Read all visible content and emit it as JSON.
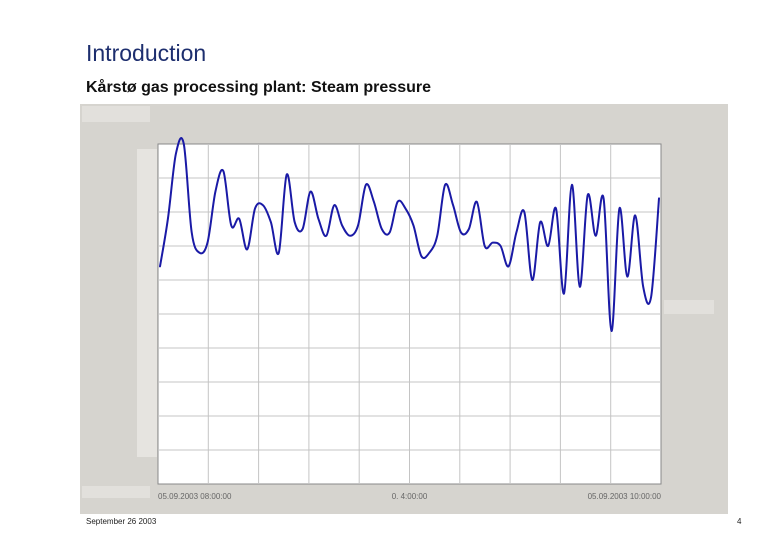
{
  "slide": {
    "title": "Introduction",
    "subtitle": "Kårstø gas processing plant: Steam pressure",
    "footer_date": "September 26 2003",
    "page_number": "4"
  },
  "chart_data": {
    "type": "line",
    "x_tick_labels": [
      "05.09.2003 08:00:00",
      "0. 4:00:00",
      "05.09.2003 10:00:00"
    ],
    "grid": true,
    "line_color": "#1a1aa6",
    "series": [
      {
        "values": [
          0.64,
          0.78,
          0.97,
          1.0,
          0.74,
          0.68,
          0.71,
          0.86,
          0.92,
          0.76,
          0.78,
          0.69,
          0.81,
          0.82,
          0.77,
          0.68,
          0.91,
          0.77,
          0.75,
          0.86,
          0.78,
          0.73,
          0.82,
          0.76,
          0.73,
          0.76,
          0.88,
          0.83,
          0.75,
          0.74,
          0.83,
          0.81,
          0.76,
          0.67,
          0.68,
          0.73,
          0.88,
          0.82,
          0.74,
          0.75,
          0.83,
          0.7,
          0.71,
          0.7,
          0.64,
          0.74,
          0.8,
          0.6,
          0.77,
          0.7,
          0.81,
          0.56,
          0.88,
          0.58,
          0.85,
          0.73,
          0.84,
          0.45,
          0.81,
          0.61,
          0.79,
          0.58,
          0.55,
          0.84
        ]
      }
    ]
  }
}
